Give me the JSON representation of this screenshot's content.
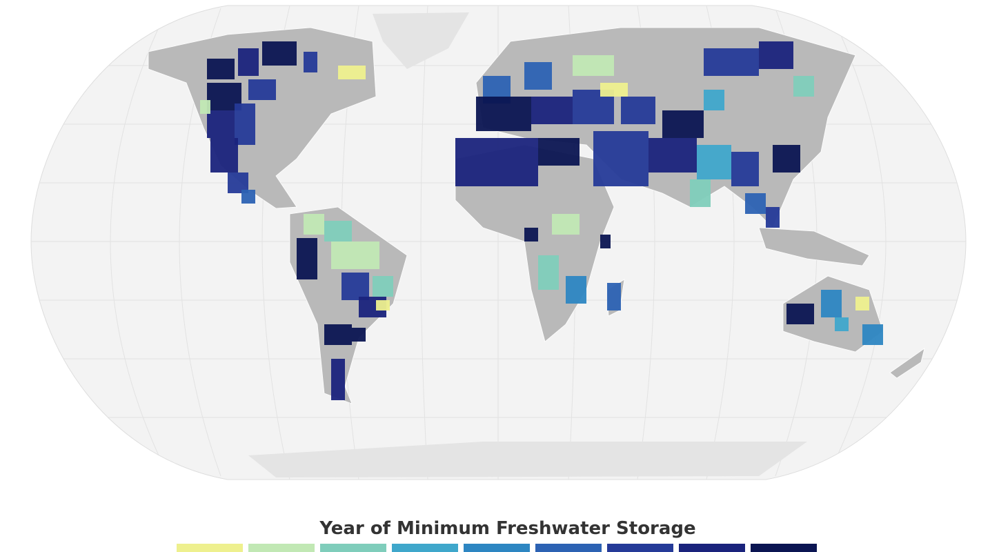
{
  "legend": {
    "title": "Year of Minimum Freshwater Storage",
    "colors": [
      "#eef08e",
      "#c1e8b4",
      "#7fcdbb",
      "#3fa7cb",
      "#2d86c2",
      "#2c62b3",
      "#253a98",
      "#1a237c",
      "#0b1552"
    ]
  }
}
